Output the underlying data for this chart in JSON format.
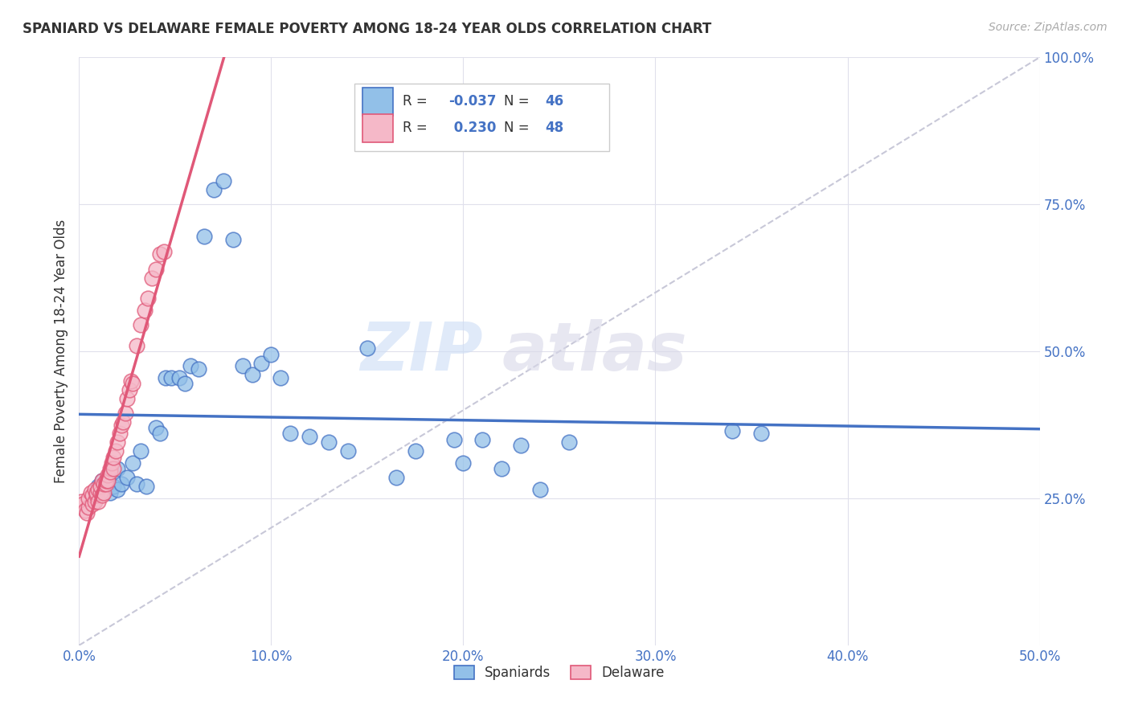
{
  "title": "SPANIARD VS DELAWARE FEMALE POVERTY AMONG 18-24 YEAR OLDS CORRELATION CHART",
  "source": "Source: ZipAtlas.com",
  "ylabel": "Female Poverty Among 18-24 Year Olds",
  "xlim": [
    0.0,
    0.5
  ],
  "ylim": [
    0.0,
    1.0
  ],
  "xticks": [
    0.0,
    0.1,
    0.2,
    0.3,
    0.4,
    0.5
  ],
  "xticklabels": [
    "0.0%",
    "10.0%",
    "20.0%",
    "30.0%",
    "40.0%",
    "50.0%"
  ],
  "yticks": [
    0.25,
    0.5,
    0.75,
    1.0
  ],
  "yticklabels": [
    "25.0%",
    "50.0%",
    "75.0%",
    "100.0%"
  ],
  "color_spaniards": "#92c0e8",
  "color_delaware": "#f5b8c8",
  "color_trendline_spaniards": "#4472c4",
  "color_trendline_delaware": "#e05878",
  "color_diagonal": "#c8c8d8",
  "watermark_zip": "ZIP",
  "watermark_atlas": "atlas",
  "spaniards_x": [
    0.01,
    0.012,
    0.014,
    0.015,
    0.016,
    0.018,
    0.02,
    0.02,
    0.022,
    0.025,
    0.028,
    0.03,
    0.032,
    0.035,
    0.04,
    0.042,
    0.045,
    0.048,
    0.052,
    0.055,
    0.058,
    0.062,
    0.065,
    0.07,
    0.075,
    0.08,
    0.085,
    0.09,
    0.095,
    0.1,
    0.105,
    0.11,
    0.12,
    0.13,
    0.14,
    0.15,
    0.165,
    0.175,
    0.195,
    0.2,
    0.21,
    0.22,
    0.23,
    0.24,
    0.255,
    0.34,
    0.355
  ],
  "spaniards_y": [
    0.27,
    0.28,
    0.265,
    0.285,
    0.26,
    0.27,
    0.265,
    0.3,
    0.275,
    0.285,
    0.31,
    0.275,
    0.33,
    0.27,
    0.37,
    0.36,
    0.455,
    0.455,
    0.455,
    0.445,
    0.475,
    0.47,
    0.695,
    0.775,
    0.79,
    0.69,
    0.475,
    0.46,
    0.48,
    0.495,
    0.455,
    0.36,
    0.355,
    0.345,
    0.33,
    0.505,
    0.285,
    0.33,
    0.35,
    0.31,
    0.35,
    0.3,
    0.34,
    0.265,
    0.345,
    0.365,
    0.36
  ],
  "delaware_x": [
    0.001,
    0.002,
    0.003,
    0.004,
    0.005,
    0.005,
    0.006,
    0.007,
    0.007,
    0.008,
    0.008,
    0.009,
    0.009,
    0.01,
    0.01,
    0.011,
    0.011,
    0.012,
    0.012,
    0.013,
    0.013,
    0.014,
    0.014,
    0.015,
    0.015,
    0.016,
    0.016,
    0.017,
    0.018,
    0.018,
    0.019,
    0.02,
    0.021,
    0.022,
    0.023,
    0.024,
    0.025,
    0.026,
    0.027,
    0.028,
    0.03,
    0.032,
    0.034,
    0.036,
    0.038,
    0.04,
    0.042,
    0.044
  ],
  "delaware_y": [
    0.245,
    0.24,
    0.23,
    0.225,
    0.235,
    0.25,
    0.26,
    0.24,
    0.255,
    0.245,
    0.265,
    0.255,
    0.26,
    0.265,
    0.245,
    0.26,
    0.27,
    0.255,
    0.28,
    0.26,
    0.275,
    0.275,
    0.28,
    0.29,
    0.28,
    0.3,
    0.295,
    0.31,
    0.3,
    0.32,
    0.33,
    0.345,
    0.36,
    0.375,
    0.38,
    0.395,
    0.42,
    0.435,
    0.45,
    0.445,
    0.51,
    0.545,
    0.57,
    0.59,
    0.625,
    0.64,
    0.665,
    0.67
  ]
}
